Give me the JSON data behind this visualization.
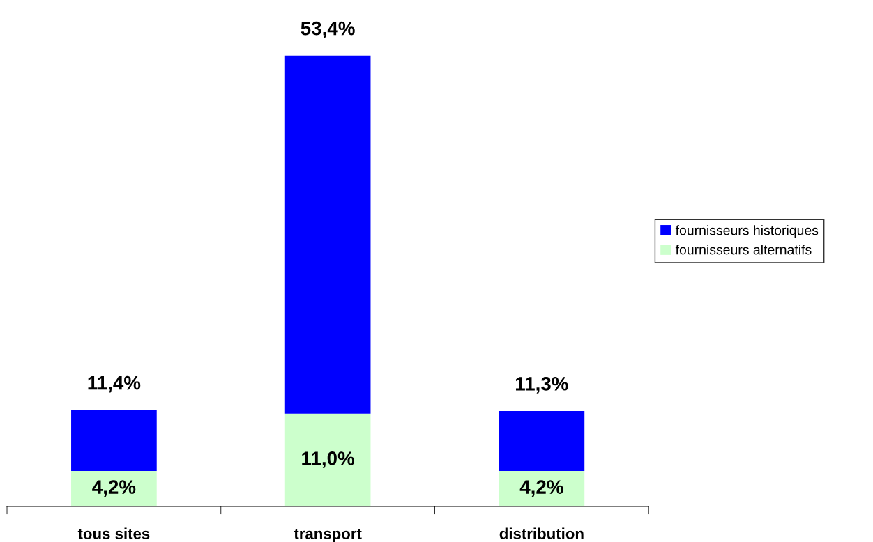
{
  "chart_data": {
    "type": "bar",
    "stacked": true,
    "categories": [
      "tous sites",
      "transport",
      "distribution"
    ],
    "series": [
      {
        "name": "fournisseurs alternatifs",
        "color": "#ccffcc",
        "values": [
          4.2,
          11.0,
          4.2
        ],
        "value_labels": [
          "4,2%",
          "11,0%",
          "4,2%"
        ]
      },
      {
        "name": "fournisseurs historiques",
        "color": "#0000ff",
        "values": [
          7.2,
          42.4,
          7.1
        ]
      }
    ],
    "totals": [
      "11,4%",
      "53,4%",
      "11,3%"
    ],
    "legend": "right",
    "grid": false
  }
}
